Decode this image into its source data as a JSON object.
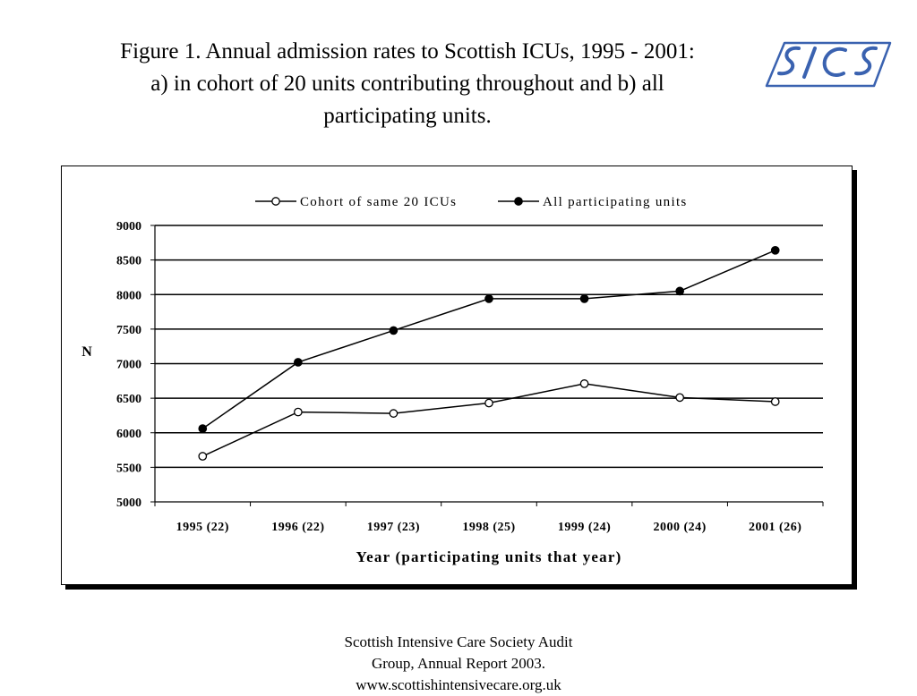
{
  "title": {
    "line1": "Figure 1. Annual admission rates to Scottish ICUs, 1995 - 2001:",
    "line2": "a) in cohort of 20 units contributing throughout and b) all",
    "line3": "participating units."
  },
  "logo": {
    "name": "scottish-intensive-care-society-logo",
    "color": "#3a62b0"
  },
  "footer": {
    "line1": "Scottish Intensive Care Society Audit",
    "line2": "Group, Annual Report 2003.",
    "line3": "www.scottishintensivecare.org.uk"
  },
  "chart_data": {
    "type": "line",
    "categories": [
      "1995 (22)",
      "1996 (22)",
      "1997 (23)",
      "1998 (25)",
      "1999 (24)",
      "2000 (24)",
      "2001 (26)"
    ],
    "series": [
      {
        "name": "Cohort of same 20 ICUs",
        "marker": "open-circle",
        "values": [
          5660,
          6300,
          6280,
          6430,
          6710,
          6510,
          6450
        ]
      },
      {
        "name": "All participating units",
        "marker": "filled-circle",
        "values": [
          6060,
          7020,
          7480,
          7940,
          7940,
          8050,
          8640
        ]
      }
    ],
    "title": "",
    "xlabel": "Year (participating units that year)",
    "ylabel": "N",
    "ylim": [
      5000,
      9000
    ],
    "yticks": [
      "9000",
      "8500",
      "8000",
      "7500",
      "7000",
      "6500",
      "6000",
      "5500",
      "5000"
    ],
    "grid": "horizontal",
    "legend": "top-center",
    "colors": {
      "line": "#000000",
      "grid": "#000000"
    }
  }
}
